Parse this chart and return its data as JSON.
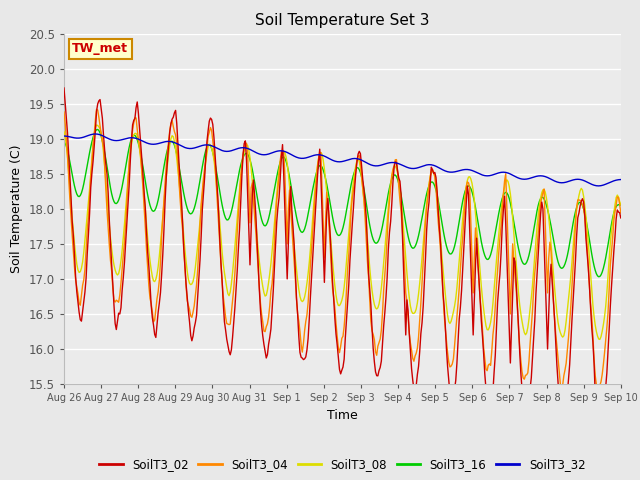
{
  "title": "Soil Temperature Set 3",
  "xlabel": "Time",
  "ylabel": "Soil Temperature (C)",
  "ylim": [
    15.5,
    20.5
  ],
  "background_color": "#e8e8e8",
  "plot_bg_color": "#ebebeb",
  "series_colors": {
    "SoilT3_02": "#cc0000",
    "SoilT3_04": "#ff8800",
    "SoilT3_08": "#dddd00",
    "SoilT3_16": "#00cc00",
    "SoilT3_32": "#0000cc"
  },
  "annotation_text": "TW_met",
  "annotation_color": "#cc0000",
  "annotation_bg": "#ffffcc",
  "annotation_border": "#cc8800",
  "legend_items": [
    "SoilT3_02",
    "SoilT3_04",
    "SoilT3_08",
    "SoilT3_16",
    "SoilT3_32"
  ],
  "xtick_labels": [
    "Aug 26",
    "Aug 27",
    "Aug 28",
    "Aug 29",
    "Aug 30",
    "Aug 31",
    "Sep 1",
    "Sep 2",
    "Sep 3",
    "Sep 4",
    "Sep 5",
    "Sep 6",
    "Sep 7",
    "Sep 8",
    "Sep 9",
    "Sep 10"
  ],
  "ytick_labels": [
    "15.5",
    "16.0",
    "16.5",
    "17.0",
    "17.5",
    "18.0",
    "18.5",
    "19.0",
    "19.5",
    "20.0",
    "20.5"
  ],
  "n_points": 480
}
